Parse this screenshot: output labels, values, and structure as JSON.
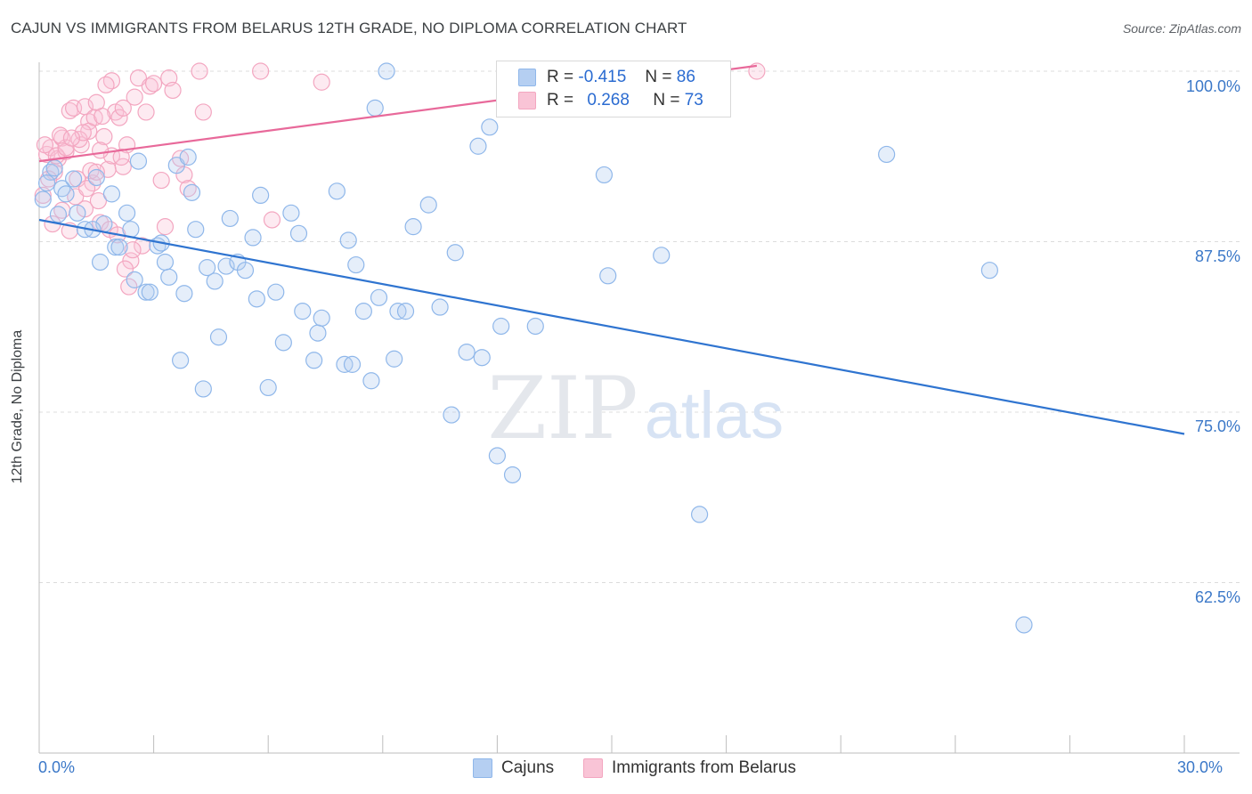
{
  "title": "CAJUN VS IMMIGRANTS FROM BELARUS 12TH GRADE, NO DIPLOMA CORRELATION CHART",
  "source": "Source: ZipAtlas.com",
  "watermark": {
    "zip": "ZIP",
    "atlas": "atlas"
  },
  "colors": {
    "cajun": "#8fb7ea",
    "cajun_line": "#2f74d0",
    "cajun_swatch": "#b5cff2",
    "belarus": "#f3a6c0",
    "belarus_line": "#e8699a",
    "belarus_swatch": "#f9c4d6",
    "axis_label": "#3b78c8",
    "grid": "#dcdcdc"
  },
  "stats": [
    {
      "r_label": "R =",
      "r": "-0.415",
      "n_label": "N =",
      "n": "86"
    },
    {
      "r_label": "R =",
      "r": "0.268",
      "n_label": "N =",
      "n": "73"
    }
  ],
  "legend": [
    {
      "label": "Cajuns"
    },
    {
      "label": "Immigrants from Belarus"
    }
  ],
  "chart_data": {
    "type": "scatter",
    "title": "CAJUN VS IMMIGRANTS FROM BELARUS 12TH GRADE, NO DIPLOMA CORRELATION CHART",
    "xlabel": "",
    "ylabel": "12th Grade, No Diploma",
    "xlim": [
      0,
      30
    ],
    "ylim": [
      50,
      101.5
    ],
    "x_tick_labels": [
      "0.0%",
      "30.0%"
    ],
    "y_ticks": [
      62.5,
      75.0,
      87.5,
      100.0
    ],
    "y_tick_labels": [
      "62.5%",
      "75.0%",
      "87.5%",
      "100.0%"
    ],
    "legend_position": "bottom-center",
    "grid": true,
    "series": [
      {
        "name": "Cajuns",
        "r": -0.415,
        "n": 86,
        "trend": {
          "x": [
            0,
            30
          ],
          "y": [
            89.1,
            73.4
          ]
        },
        "points": [
          [
            0.1,
            90.6
          ],
          [
            0.3,
            92.6
          ],
          [
            0.4,
            92.9
          ],
          [
            0.5,
            89.5
          ],
          [
            0.6,
            91.4
          ],
          [
            0.7,
            91.0
          ],
          [
            0.9,
            92.1
          ],
          [
            1.0,
            89.6
          ],
          [
            1.2,
            88.4
          ],
          [
            1.5,
            92.2
          ],
          [
            1.6,
            86.0
          ],
          [
            1.7,
            88.8
          ],
          [
            1.9,
            91.0
          ],
          [
            2.0,
            87.1
          ],
          [
            2.1,
            87.1
          ],
          [
            2.3,
            89.6
          ],
          [
            2.4,
            88.4
          ],
          [
            2.5,
            84.7
          ],
          [
            2.6,
            93.4
          ],
          [
            2.8,
            83.8
          ],
          [
            2.9,
            83.8
          ],
          [
            3.1,
            87.2
          ],
          [
            3.2,
            87.4
          ],
          [
            3.3,
            86.0
          ],
          [
            3.4,
            84.9
          ],
          [
            3.6,
            93.1
          ],
          [
            3.7,
            78.8
          ],
          [
            3.8,
            83.7
          ],
          [
            3.9,
            93.7
          ],
          [
            4.0,
            91.1
          ],
          [
            4.1,
            88.4
          ],
          [
            4.3,
            76.7
          ],
          [
            4.4,
            85.6
          ],
          [
            4.6,
            84.6
          ],
          [
            4.7,
            80.5
          ],
          [
            4.9,
            85.7
          ],
          [
            5.0,
            89.2
          ],
          [
            5.2,
            86.0
          ],
          [
            5.4,
            85.4
          ],
          [
            5.6,
            87.8
          ],
          [
            5.7,
            83.3
          ],
          [
            5.8,
            90.9
          ],
          [
            6.0,
            76.8
          ],
          [
            6.2,
            83.8
          ],
          [
            6.4,
            80.1
          ],
          [
            6.6,
            89.6
          ],
          [
            6.8,
            88.1
          ],
          [
            6.9,
            82.4
          ],
          [
            7.2,
            78.8
          ],
          [
            7.3,
            80.8
          ],
          [
            7.4,
            81.9
          ],
          [
            7.8,
            91.2
          ],
          [
            8.0,
            78.5
          ],
          [
            8.1,
            87.6
          ],
          [
            8.2,
            78.5
          ],
          [
            8.3,
            85.8
          ],
          [
            8.5,
            82.4
          ],
          [
            8.7,
            77.3
          ],
          [
            8.8,
            97.3
          ],
          [
            8.9,
            83.4
          ],
          [
            9.1,
            100.0
          ],
          [
            9.3,
            78.9
          ],
          [
            9.4,
            82.4
          ],
          [
            9.6,
            82.4
          ],
          [
            9.8,
            88.6
          ],
          [
            10.2,
            90.2
          ],
          [
            10.5,
            82.7
          ],
          [
            10.8,
            74.8
          ],
          [
            10.9,
            86.7
          ],
          [
            11.2,
            79.4
          ],
          [
            11.5,
            94.5
          ],
          [
            11.6,
            79.0
          ],
          [
            11.8,
            95.9
          ],
          [
            12.0,
            71.8
          ],
          [
            12.1,
            81.3
          ],
          [
            12.4,
            70.4
          ],
          [
            13.0,
            81.3
          ],
          [
            14.8,
            92.4
          ],
          [
            14.9,
            85.0
          ],
          [
            16.3,
            86.5
          ],
          [
            17.3,
            67.5
          ],
          [
            22.2,
            93.9
          ],
          [
            24.9,
            85.4
          ],
          [
            25.8,
            59.4
          ],
          [
            0.2,
            91.8
          ],
          [
            1.4,
            88.4
          ]
        ]
      },
      {
        "name": "Immigrants from Belarus",
        "r": 0.268,
        "n": 73,
        "trend": {
          "x": [
            0,
            18.8
          ],
          "y": [
            93.4,
            100.4
          ]
        },
        "points": [
          [
            0.1,
            90.9
          ],
          [
            0.2,
            93.9
          ],
          [
            0.3,
            94.4
          ],
          [
            0.4,
            92.6
          ],
          [
            0.5,
            93.6
          ],
          [
            0.6,
            95.1
          ],
          [
            0.7,
            94.1
          ],
          [
            0.8,
            88.3
          ],
          [
            0.8,
            97.1
          ],
          [
            0.9,
            97.3
          ],
          [
            1.0,
            92.1
          ],
          [
            1.1,
            94.6
          ],
          [
            1.2,
            97.4
          ],
          [
            1.3,
            96.3
          ],
          [
            1.3,
            95.6
          ],
          [
            1.4,
            91.8
          ],
          [
            1.5,
            97.7
          ],
          [
            1.6,
            88.9
          ],
          [
            1.7,
            95.2
          ],
          [
            1.8,
            92.8
          ],
          [
            1.9,
            93.8
          ],
          [
            1.9,
            99.3
          ],
          [
            2.0,
            97.0
          ],
          [
            2.1,
            96.6
          ],
          [
            2.2,
            93.0
          ],
          [
            2.3,
            94.6
          ],
          [
            2.4,
            86.1
          ],
          [
            2.5,
            98.1
          ],
          [
            2.6,
            99.5
          ],
          [
            2.7,
            87.2
          ],
          [
            2.8,
            97.0
          ],
          [
            2.9,
            98.9
          ],
          [
            3.0,
            99.1
          ],
          [
            3.2,
            92.0
          ],
          [
            3.3,
            88.6
          ],
          [
            3.4,
            99.5
          ],
          [
            3.5,
            98.6
          ],
          [
            3.7,
            93.6
          ],
          [
            3.8,
            92.4
          ],
          [
            3.9,
            91.4
          ],
          [
            4.2,
            100.0
          ],
          [
            4.3,
            97.0
          ],
          [
            5.8,
            100.0
          ],
          [
            6.1,
            89.1
          ],
          [
            7.4,
            99.2
          ],
          [
            18.8,
            100.0
          ],
          [
            0.15,
            94.6
          ],
          [
            0.45,
            93.8
          ],
          [
            0.7,
            94.4
          ],
          [
            1.05,
            95.0
          ],
          [
            1.2,
            89.9
          ],
          [
            1.35,
            92.7
          ],
          [
            1.45,
            96.6
          ],
          [
            1.5,
            92.6
          ],
          [
            1.6,
            94.2
          ],
          [
            1.75,
            99.0
          ],
          [
            1.85,
            88.4
          ],
          [
            2.05,
            88.0
          ],
          [
            2.15,
            93.7
          ],
          [
            2.2,
            97.3
          ],
          [
            2.25,
            85.5
          ],
          [
            2.35,
            84.2
          ],
          [
            0.25,
            92.1
          ],
          [
            0.55,
            95.3
          ],
          [
            0.95,
            90.8
          ],
          [
            1.15,
            95.5
          ],
          [
            1.25,
            91.4
          ],
          [
            0.35,
            88.8
          ],
          [
            0.6,
            89.8
          ],
          [
            0.85,
            95.1
          ],
          [
            1.55,
            90.5
          ],
          [
            1.65,
            96.7
          ],
          [
            2.45,
            86.9
          ]
        ]
      }
    ]
  }
}
